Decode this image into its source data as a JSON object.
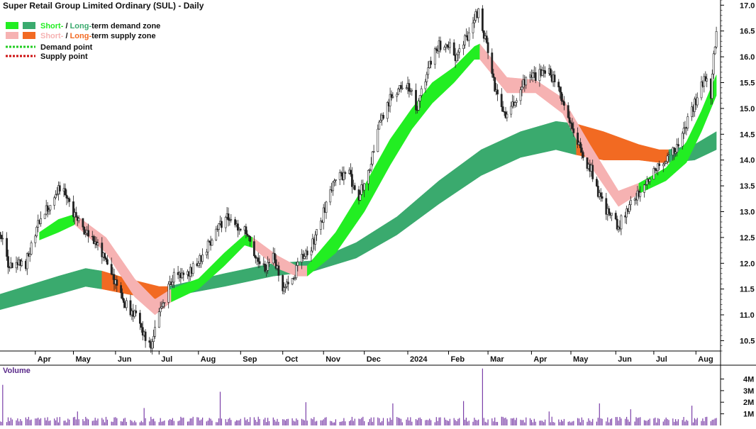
{
  "chart_data": {
    "type": "candlestick",
    "title": "Super Retail Group Limited Ordinary (SUL) - Daily",
    "legend": {
      "demand_zone": {
        "short": "Short-",
        "sep": " / ",
        "long": "Long-",
        "rest": "term demand zone"
      },
      "supply_zone": {
        "short": "Short-",
        "sep": " / ",
        "long": "Long-",
        "rest": "term supply zone"
      },
      "demand_point": "Demand point",
      "supply_point": "Supply point"
    },
    "colors": {
      "short_demand": "#22ee22",
      "long_demand": "#3aaa6e",
      "short_supply": "#f6b2b2",
      "long_supply": "#f26a22",
      "demand_point": "#22cc22",
      "supply_point": "#cc1111",
      "volume_bar": "#7b3fa8",
      "candle": "#222222"
    },
    "price_axis": {
      "ticks": [
        "17.0",
        "16.5",
        "16.0",
        "15.5",
        "15.0",
        "14.5",
        "14.0",
        "13.5",
        "13.0",
        "12.5",
        "12.0",
        "11.5",
        "11.0",
        "10.5"
      ],
      "range": [
        10.3,
        17.1
      ]
    },
    "x_axis": {
      "range": [
        "2023-03-08",
        "2024-08-17"
      ],
      "ticks": [
        {
          "label": "Apr",
          "date": "2023-04-03"
        },
        {
          "label": "May",
          "date": "2023-05-01"
        },
        {
          "label": "Jun",
          "date": "2023-06-01"
        },
        {
          "label": "Jul",
          "date": "2023-07-03"
        },
        {
          "label": "Aug",
          "date": "2023-08-01"
        },
        {
          "label": "Sep",
          "date": "2023-09-01"
        },
        {
          "label": "Oct",
          "date": "2023-10-02"
        },
        {
          "label": "Nov",
          "date": "2023-11-01"
        },
        {
          "label": "Dec",
          "date": "2023-12-01"
        },
        {
          "label": "2024",
          "date": "2024-01-02"
        },
        {
          "label": "Feb",
          "date": "2024-02-01"
        },
        {
          "label": "Mar",
          "date": "2024-03-01"
        },
        {
          "label": "Apr",
          "date": "2024-04-02"
        },
        {
          "label": "May",
          "date": "2024-05-01"
        },
        {
          "label": "Jun",
          "date": "2024-06-03"
        },
        {
          "label": "Jul",
          "date": "2024-07-01"
        },
        {
          "label": "Aug",
          "date": "2024-08-01"
        }
      ]
    },
    "price_path": [
      [
        "2023-03-08",
        12.6
      ],
      [
        "2023-03-15",
        11.9
      ],
      [
        "2023-03-27",
        12.0
      ],
      [
        "2023-04-04",
        12.7
      ],
      [
        "2023-04-13",
        13.1
      ],
      [
        "2023-04-21",
        13.45
      ],
      [
        "2023-04-28",
        13.2
      ],
      [
        "2023-05-04",
        12.8
      ],
      [
        "2023-05-11",
        12.6
      ],
      [
        "2023-05-18",
        12.4
      ],
      [
        "2023-05-25",
        12.0
      ],
      [
        "2023-06-01",
        11.6
      ],
      [
        "2023-06-08",
        11.2
      ],
      [
        "2023-06-15",
        11.0
      ],
      [
        "2023-06-22",
        10.6
      ],
      [
        "2023-06-27",
        10.45
      ],
      [
        "2023-07-03",
        11.0
      ],
      [
        "2023-07-10",
        11.6
      ],
      [
        "2023-07-17",
        11.8
      ],
      [
        "2023-07-24",
        11.8
      ],
      [
        "2023-07-31",
        12.0
      ],
      [
        "2023-08-07",
        12.3
      ],
      [
        "2023-08-14",
        12.6
      ],
      [
        "2023-08-21",
        12.9
      ],
      [
        "2023-08-28",
        12.7
      ],
      [
        "2023-09-04",
        12.6
      ],
      [
        "2023-09-11",
        12.2
      ],
      [
        "2023-09-18",
        11.9
      ],
      [
        "2023-09-25",
        12.1
      ],
      [
        "2023-10-02",
        11.5
      ],
      [
        "2023-10-09",
        11.7
      ],
      [
        "2023-10-16",
        12.1
      ],
      [
        "2023-10-23",
        12.3
      ],
      [
        "2023-10-30",
        12.8
      ],
      [
        "2023-11-06",
        13.4
      ],
      [
        "2023-11-13",
        13.7
      ],
      [
        "2023-11-20",
        13.7
      ],
      [
        "2023-11-27",
        13.3
      ],
      [
        "2023-12-04",
        13.8
      ],
      [
        "2023-12-11",
        14.6
      ],
      [
        "2023-12-18",
        15.1
      ],
      [
        "2023-12-27",
        15.4
      ],
      [
        "2024-01-02",
        15.5
      ],
      [
        "2024-01-09",
        15.0
      ],
      [
        "2024-01-16",
        15.7
      ],
      [
        "2024-01-23",
        16.2
      ],
      [
        "2024-01-30",
        16.3
      ],
      [
        "2024-02-06",
        16.0
      ],
      [
        "2024-02-13",
        16.3
      ],
      [
        "2024-02-20",
        16.7
      ],
      [
        "2024-02-23",
        16.9
      ],
      [
        "2024-02-28",
        16.3
      ],
      [
        "2024-03-06",
        15.4
      ],
      [
        "2024-03-13",
        14.9
      ],
      [
        "2024-03-20",
        15.1
      ],
      [
        "2024-03-27",
        15.5
      ],
      [
        "2024-04-04",
        15.6
      ],
      [
        "2024-04-11",
        15.8
      ],
      [
        "2024-04-18",
        15.6
      ],
      [
        "2024-04-25",
        15.2
      ],
      [
        "2024-05-02",
        14.6
      ],
      [
        "2024-05-09",
        14.1
      ],
      [
        "2024-05-16",
        13.8
      ],
      [
        "2024-05-23",
        13.2
      ],
      [
        "2024-05-30",
        12.9
      ],
      [
        "2024-06-05",
        12.7
      ],
      [
        "2024-06-12",
        13.1
      ],
      [
        "2024-06-19",
        13.3
      ],
      [
        "2024-06-26",
        13.6
      ],
      [
        "2024-07-03",
        13.8
      ],
      [
        "2024-07-10",
        14.0
      ],
      [
        "2024-07-17",
        14.2
      ],
      [
        "2024-07-24",
        14.6
      ],
      [
        "2024-07-31",
        15.1
      ],
      [
        "2024-08-07",
        15.6
      ],
      [
        "2024-08-12",
        15.3
      ],
      [
        "2024-08-16",
        16.6
      ]
    ],
    "long_demand_zone": [
      [
        "2023-03-08",
        11.4,
        11.1
      ],
      [
        "2023-04-20",
        11.75,
        11.4
      ],
      [
        "2023-05-10",
        11.9,
        11.55
      ],
      [
        "2023-05-22",
        11.85,
        11.5
      ]
    ],
    "long_supply_zone": [
      [
        "2023-05-22",
        11.85,
        11.5
      ],
      [
        "2023-06-10",
        11.7,
        11.4
      ],
      [
        "2023-07-03",
        11.55,
        11.3
      ],
      [
        "2023-07-10",
        11.55,
        11.35
      ]
    ],
    "long_demand_zone_2": [
      [
        "2023-07-10",
        11.55,
        11.35
      ],
      [
        "2023-08-20",
        11.8,
        11.55
      ],
      [
        "2023-09-25",
        12.0,
        11.75
      ],
      [
        "2023-10-25",
        12.05,
        11.85
      ],
      [
        "2023-11-25",
        12.4,
        12.1
      ],
      [
        "2023-12-25",
        12.9,
        12.55
      ],
      [
        "2024-01-25",
        13.6,
        13.15
      ],
      [
        "2024-02-25",
        14.2,
        13.7
      ],
      [
        "2024-03-25",
        14.55,
        14.05
      ],
      [
        "2024-04-20",
        14.75,
        14.2
      ],
      [
        "2024-05-05",
        14.7,
        14.1
      ]
    ],
    "long_supply_zone_2": [
      [
        "2024-05-05",
        14.7,
        14.1
      ],
      [
        "2024-05-25",
        14.55,
        14.0
      ],
      [
        "2024-06-20",
        14.3,
        14.0
      ],
      [
        "2024-07-05",
        14.2,
        13.95
      ],
      [
        "2024-07-12",
        14.2,
        13.95
      ]
    ],
    "long_demand_zone_3": [
      [
        "2024-07-12",
        14.2,
        13.95
      ],
      [
        "2024-07-31",
        14.3,
        14.0
      ],
      [
        "2024-08-16",
        14.55,
        14.2
      ]
    ],
    "short_demand_zone_1": [
      [
        "2023-04-06",
        12.6,
        12.45
      ],
      [
        "2023-04-20",
        12.85,
        12.6
      ],
      [
        "2023-05-02",
        12.95,
        12.75
      ]
    ],
    "short_supply_zone_1": [
      [
        "2023-05-02",
        12.95,
        12.75
      ],
      [
        "2023-05-25",
        12.5,
        12.2
      ],
      [
        "2023-06-15",
        11.7,
        11.35
      ],
      [
        "2023-06-30",
        11.3,
        11.0
      ],
      [
        "2023-07-12",
        11.5,
        11.25
      ]
    ],
    "short_demand_zone_2": [
      [
        "2023-07-12",
        11.5,
        11.25
      ],
      [
        "2023-08-01",
        11.7,
        11.5
      ],
      [
        "2023-08-20",
        12.2,
        11.95
      ],
      [
        "2023-09-04",
        12.55,
        12.35
      ],
      [
        "2023-09-10",
        12.5,
        12.3
      ]
    ],
    "short_supply_zone_2": [
      [
        "2023-09-10",
        12.5,
        12.3
      ],
      [
        "2023-09-28",
        12.15,
        11.9
      ],
      [
        "2023-10-12",
        11.95,
        11.75
      ],
      [
        "2023-10-20",
        11.95,
        11.75
      ]
    ],
    "short_demand_zone_3": [
      [
        "2023-10-20",
        11.95,
        11.75
      ],
      [
        "2023-11-10",
        12.6,
        12.2
      ],
      [
        "2023-12-01",
        13.5,
        13.0
      ],
      [
        "2023-12-20",
        14.4,
        13.9
      ],
      [
        "2024-01-05",
        15.0,
        14.6
      ],
      [
        "2024-01-20",
        15.5,
        15.1
      ],
      [
        "2024-02-05",
        15.8,
        15.5
      ],
      [
        "2024-02-20",
        16.2,
        15.95
      ],
      [
        "2024-02-24",
        16.25,
        15.95
      ]
    ],
    "short_supply_zone_3": [
      [
        "2024-02-24",
        16.25,
        15.95
      ],
      [
        "2024-03-15",
        15.6,
        15.3
      ],
      [
        "2024-04-05",
        15.55,
        15.3
      ],
      [
        "2024-04-25",
        15.2,
        14.9
      ],
      [
        "2024-05-15",
        14.3,
        13.9
      ],
      [
        "2024-06-05",
        13.4,
        13.1
      ],
      [
        "2024-06-20",
        13.55,
        13.35
      ]
    ],
    "short_demand_zone_4": [
      [
        "2024-06-20",
        13.55,
        13.35
      ],
      [
        "2024-07-10",
        13.85,
        13.6
      ],
      [
        "2024-07-25",
        14.35,
        13.95
      ],
      [
        "2024-08-05",
        14.95,
        14.55
      ],
      [
        "2024-08-16",
        15.65,
        15.25
      ]
    ],
    "volume": {
      "title": "Volume",
      "ticks": [
        "4M",
        "3M",
        "2M",
        "1M"
      ],
      "range": [
        0,
        4700000
      ],
      "spikes": [
        [
          "2023-03-10",
          3500000
        ],
        [
          "2023-05-04",
          1200000
        ],
        [
          "2023-06-22",
          1500000
        ],
        [
          "2023-08-17",
          2900000
        ],
        [
          "2023-10-19",
          2000000
        ],
        [
          "2023-12-22",
          1900000
        ],
        [
          "2024-02-12",
          2100000
        ],
        [
          "2024-02-26",
          4900000
        ],
        [
          "2024-04-15",
          1200000
        ],
        [
          "2024-05-22",
          1900000
        ],
        [
          "2024-06-14",
          1400000
        ],
        [
          "2024-07-29",
          1700000
        ]
      ]
    }
  }
}
